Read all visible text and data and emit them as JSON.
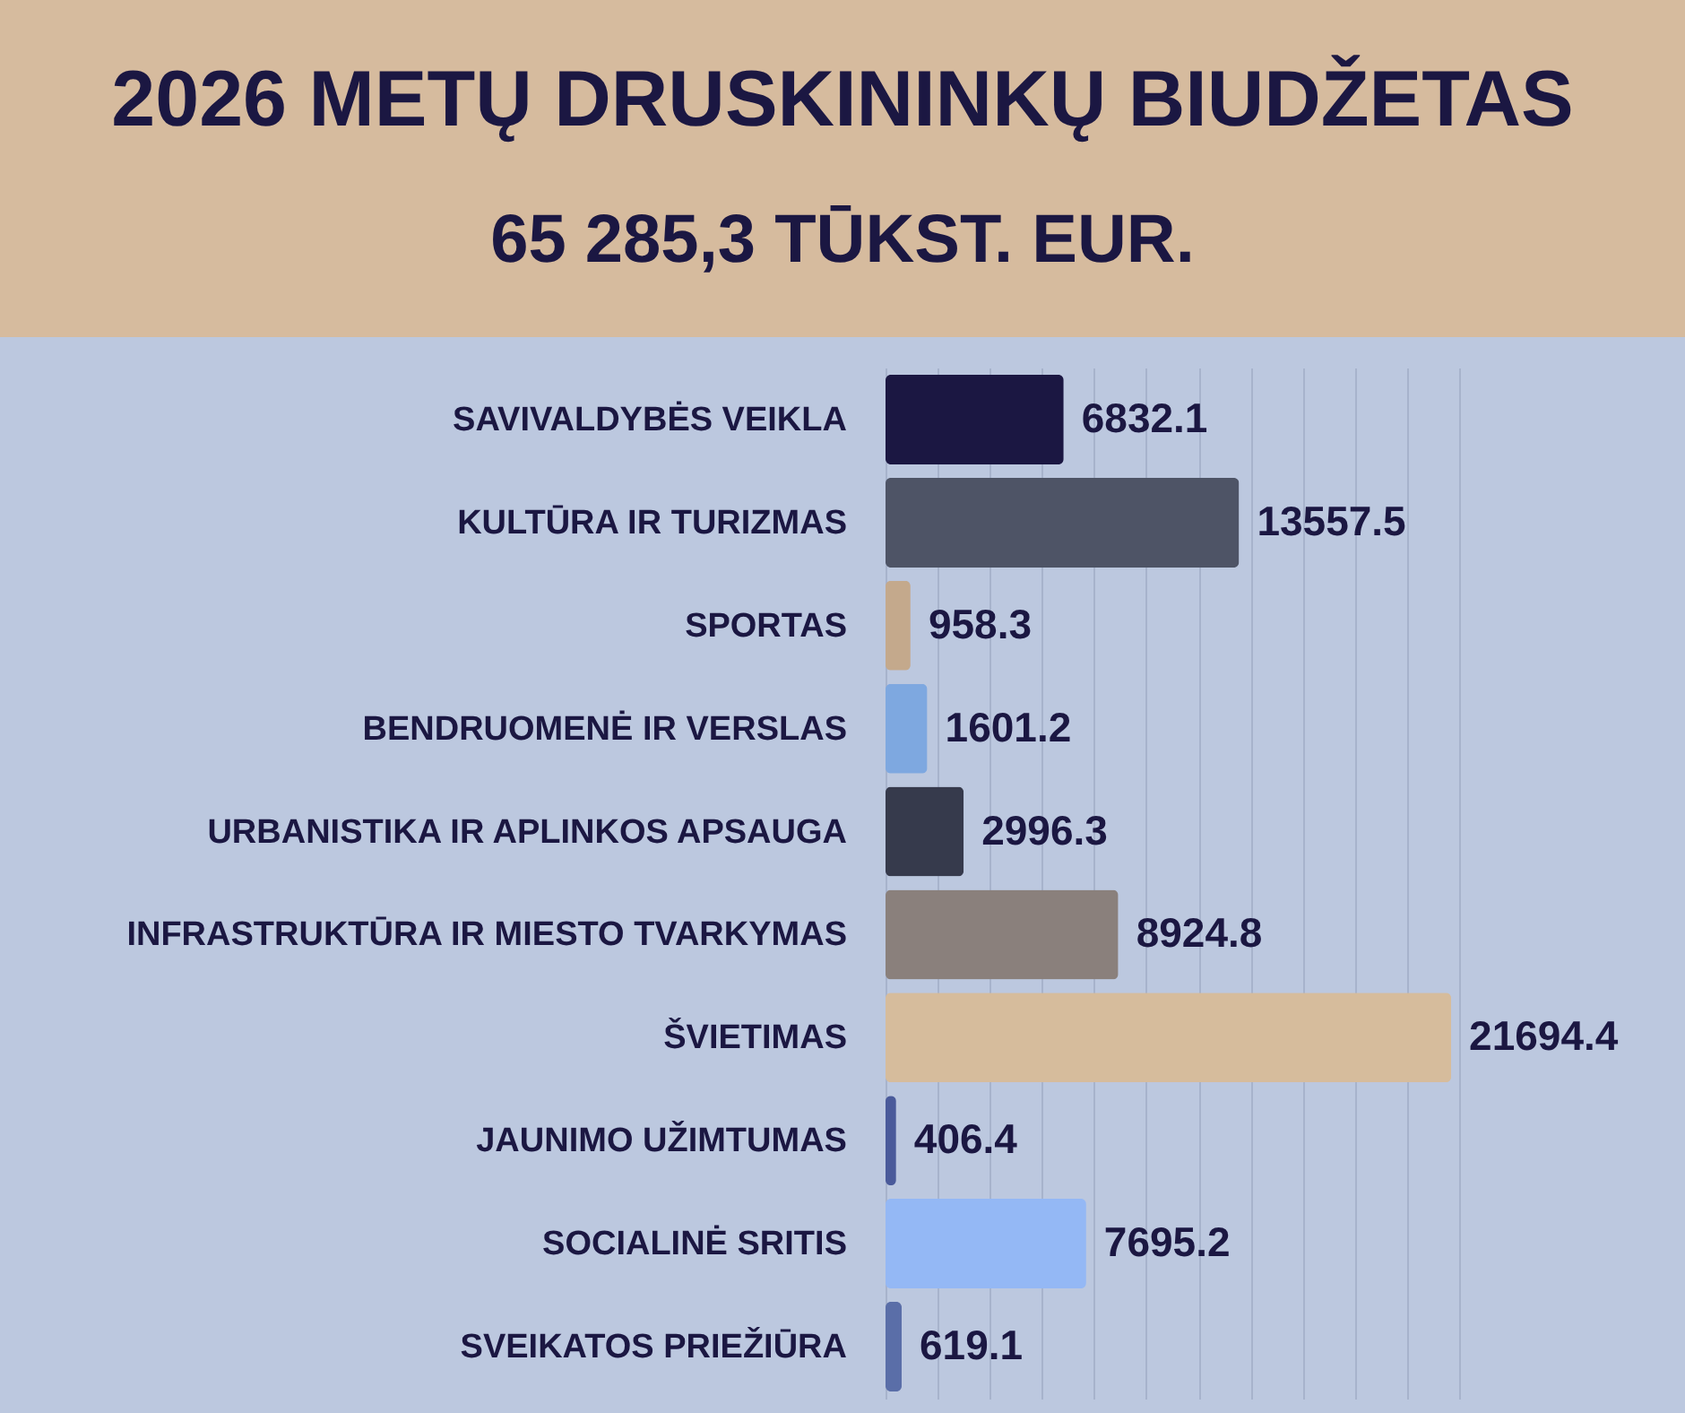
{
  "chart_data": {
    "type": "bar",
    "orientation": "horizontal",
    "title": "2026 METŲ DRUSKININKŲ BIUDŽETAS",
    "subtitle": "65 285,3 TŪKST. EUR.",
    "categories": [
      "SAVIVALDYBĖS VEIKLA",
      "KULTŪRA IR TURIZMAS",
      "SPORTAS",
      "BENDRUOMENĖ IR VERSLAS",
      "URBANISTIKA IR APLINKOS APSAUGA",
      "INFRASTRUKTŪRA IR MIESTO TVARKYMAS",
      "ŠVIETIMAS",
      "JAUNIMO UŽIMTUMAS",
      "SOCIALINĖ SRITIS",
      "SVEIKATOS PRIEŽIŪRA"
    ],
    "values": [
      6832.1,
      13557.5,
      958.3,
      1601.2,
      2996.3,
      8924.8,
      21694.4,
      406.4,
      7695.2,
      619.1
    ],
    "colors": [
      "#1b1742",
      "#4e5466",
      "#c4a98c",
      "#7ea8e0",
      "#363a4c",
      "#8a807c",
      "#d6bc9c",
      "#4a5a9a",
      "#94b8f5",
      "#5a6ea8"
    ],
    "grid": "x",
    "tick_labels": "y",
    "data_labels": true
  }
}
